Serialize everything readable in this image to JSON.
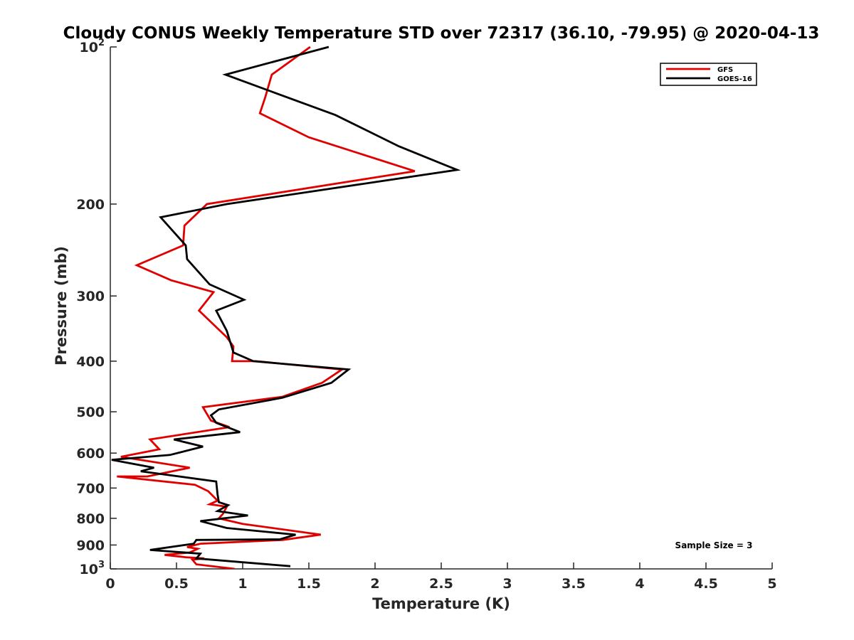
{
  "chart_data": {
    "type": "line",
    "title": "Cloudy CONUS Weekly Temperature STD over 72317 (36.10, -79.95) @ 2020-04-13",
    "xlabel": "Temperature (K)",
    "ylabel": "Pressure (mb)",
    "xlim": [
      0,
      5
    ],
    "ylim": [
      100,
      1000
    ],
    "yscale": "log",
    "y_reversed": true,
    "grid": false,
    "legend_position": "top-right",
    "x_ticks": [
      {
        "value": 0,
        "label": "0"
      },
      {
        "value": 0.5,
        "label": "0.5"
      },
      {
        "value": 1,
        "label": "1"
      },
      {
        "value": 1.5,
        "label": "1.5"
      },
      {
        "value": 2,
        "label": "2"
      },
      {
        "value": 2.5,
        "label": "2.5"
      },
      {
        "value": 3,
        "label": "3"
      },
      {
        "value": 3.5,
        "label": "3.5"
      },
      {
        "value": 4,
        "label": "4"
      },
      {
        "value": 4.5,
        "label": "4.5"
      },
      {
        "value": 5,
        "label": "5"
      }
    ],
    "y_ticks": [
      {
        "value": 100,
        "label": "10",
        "exp": "2"
      },
      {
        "value": 200,
        "label": "200"
      },
      {
        "value": 300,
        "label": "300"
      },
      {
        "value": 400,
        "label": "400"
      },
      {
        "value": 500,
        "label": "500"
      },
      {
        "value": 600,
        "label": "600"
      },
      {
        "value": 700,
        "label": "700"
      },
      {
        "value": 800,
        "label": "800"
      },
      {
        "value": 900,
        "label": "900"
      },
      {
        "value": 1000,
        "label": "10",
        "exp": "3"
      }
    ],
    "series": [
      {
        "name": "GFS",
        "color": "#e00000",
        "x": [
          1.51,
          1.22,
          1.17,
          1.13,
          1.5,
          2.3,
          0.73,
          0.56,
          0.55,
          0.2,
          0.46,
          0.78,
          0.67,
          0.88,
          0.93,
          0.92,
          1.1,
          1.75,
          1.6,
          1.3,
          0.7,
          0.72,
          0.76,
          0.9,
          0.3,
          0.37,
          0.08,
          0.6,
          0.28,
          0.05,
          0.64,
          0.74,
          0.81,
          0.75,
          0.88,
          0.85,
          0.82,
          1.0,
          1.59,
          1.3,
          0.68,
          0.58,
          0.66,
          0.6,
          0.41,
          0.57,
          0.71,
          0.62,
          0.65,
          0.94
        ],
        "y": [
          100,
          113,
          125,
          134,
          149,
          173,
          200,
          220,
          240,
          262,
          280,
          295,
          320,
          360,
          375,
          400,
          400,
          415,
          440,
          468,
          490,
          500,
          520,
          535,
          565,
          590,
          610,
          640,
          665,
          665,
          690,
          710,
          740,
          752,
          760,
          785,
          800,
          820,
          860,
          880,
          895,
          908,
          915,
          930,
          940,
          950,
          955,
          960,
          980,
          1000
        ]
      },
      {
        "name": "GOES-16",
        "color": "#000000",
        "x": [
          1.65,
          0.87,
          1.7,
          2.18,
          2.62,
          0.88,
          0.38,
          0.57,
          0.58,
          0.75,
          1.01,
          0.8,
          0.88,
          0.93,
          1.08,
          1.8,
          1.67,
          1.3,
          0.82,
          0.76,
          0.8,
          0.98,
          0.48,
          0.7,
          0.45,
          0.01,
          0.33,
          0.23,
          0.8,
          0.81,
          0.82,
          0.89,
          0.81,
          1.04,
          0.68,
          0.88,
          1.4,
          1.28,
          0.65,
          0.63,
          0.3,
          0.68,
          0.65,
          1.36
        ],
        "y": [
          100,
          113,
          135,
          155,
          172,
          200,
          212,
          240,
          255,
          285,
          305,
          320,
          350,
          385,
          400,
          415,
          440,
          470,
          495,
          508,
          525,
          547,
          565,
          583,
          605,
          618,
          640,
          650,
          680,
          720,
          745,
          755,
          775,
          790,
          810,
          835,
          860,
          878,
          880,
          895,
          920,
          935,
          955,
          988
        ]
      }
    ],
    "legend": {
      "entries": [
        "GFS",
        "GOES-16"
      ]
    },
    "annotations": [
      {
        "text": "Sample Size = 3"
      }
    ]
  }
}
